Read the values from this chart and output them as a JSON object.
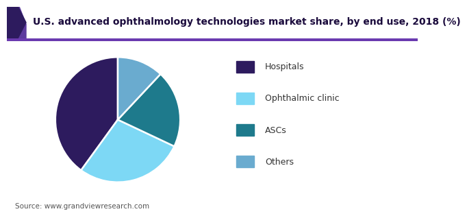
{
  "title": "U.S. advanced ophthalmology technologies market share, by end use, 2018 (%)",
  "source": "Source: www.grandviewresearch.com",
  "labels": [
    "Hospitals",
    "Ophthalmic clinic",
    "ASCs",
    "Others"
  ],
  "values": [
    40,
    28,
    20,
    12
  ],
  "colors": [
    "#2d1b5e",
    "#7dd8f5",
    "#1e7a8c",
    "#6aabcf"
  ],
  "startangle": 90,
  "title_color": "#1a0a3c",
  "background_color": "#ffffff",
  "header_bg_color": "#f0eef8",
  "header_left_color1": "#5c3a9e",
  "header_left_color2": "#2d1b5e",
  "separator_color": "#6a3ab0",
  "legend_fontsize": 9,
  "title_fontsize": 10,
  "source_fontsize": 7.5
}
